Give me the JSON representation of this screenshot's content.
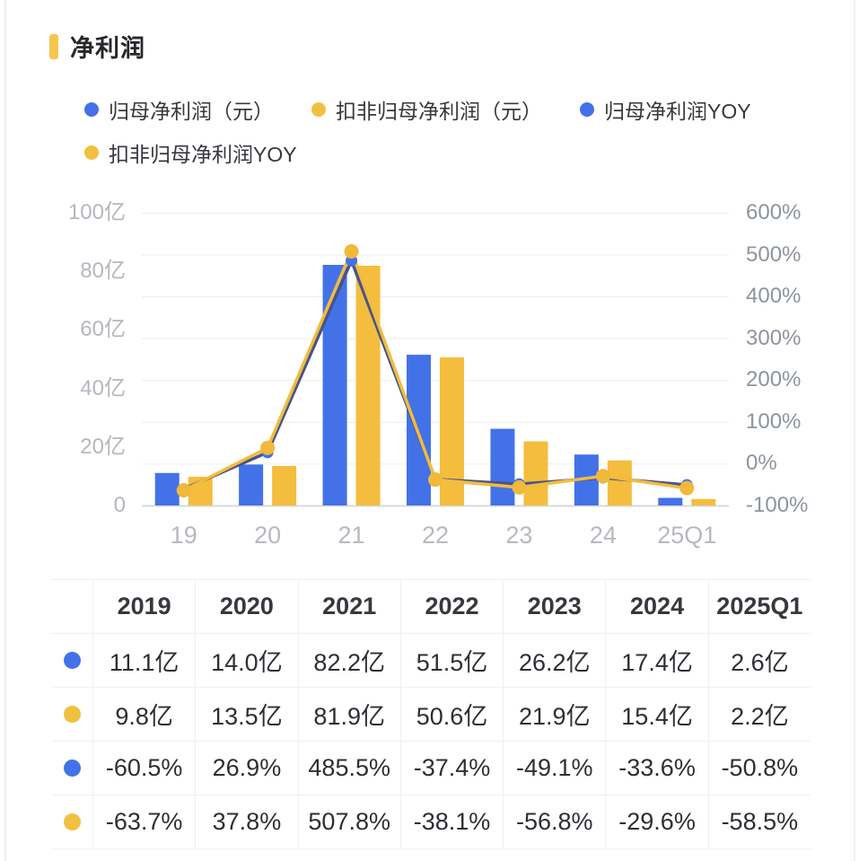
{
  "title": "净利润",
  "accent_color": "#f6c74f",
  "legend": [
    {
      "label": "归母净利润（元）",
      "color": "#4372e8"
    },
    {
      "label": "扣非归母净利润（元）",
      "color": "#f0c040"
    },
    {
      "label": "归母净利润YOY",
      "color": "#4372e8"
    },
    {
      "label": "扣非归母净利润YOY",
      "color": "#f0c040"
    }
  ],
  "chart_data": {
    "type": "bar+line combo",
    "categories": [
      "19",
      "20",
      "21",
      "22",
      "23",
      "24",
      "25Q1"
    ],
    "series": [
      {
        "name": "归母净利润（元）",
        "type": "bar",
        "axis": "left",
        "unit": "亿",
        "color": "#4372e8",
        "values": [
          11.1,
          14.0,
          82.2,
          51.5,
          26.2,
          17.4,
          2.6
        ]
      },
      {
        "name": "扣非归母净利润（元）",
        "type": "bar",
        "axis": "left",
        "unit": "亿",
        "color": "#f4bd3d",
        "values": [
          9.8,
          13.5,
          81.9,
          50.6,
          21.9,
          15.4,
          2.2
        ]
      },
      {
        "name": "归母净利润YOY",
        "type": "line",
        "axis": "right",
        "unit": "%",
        "color": "#47548c",
        "dot_color": "#4372e8",
        "values": [
          -60.5,
          26.9,
          485.5,
          -37.4,
          -49.1,
          -33.6,
          -50.8
        ]
      },
      {
        "name": "扣非归母净利润YOY",
        "type": "line",
        "axis": "right",
        "unit": "%",
        "color": "#f2bc3c",
        "dot_color": "#f0b93a",
        "values": [
          -63.7,
          37.8,
          507.8,
          -38.1,
          -56.8,
          -29.6,
          -58.5
        ]
      }
    ],
    "left_axis": {
      "ticks": [
        "100亿",
        "80亿",
        "60亿",
        "40亿",
        "20亿",
        "0"
      ],
      "min": 0,
      "max": 100,
      "unit": "亿"
    },
    "right_axis": {
      "ticks": [
        "600%",
        "500%",
        "400%",
        "300%",
        "200%",
        "100%",
        "0%",
        "-100%"
      ],
      "min": -100,
      "max": 600,
      "unit": "%"
    },
    "grid": "horizontal",
    "legend_position": "top"
  },
  "table": {
    "header": [
      "2019",
      "2020",
      "2021",
      "2022",
      "2023",
      "2024",
      "2025Q1"
    ],
    "rows": [
      {
        "marker_color": "#4372e8",
        "series": "归母净利润（元）",
        "cells": [
          "11.1亿",
          "14.0亿",
          "82.2亿",
          "51.5亿",
          "26.2亿",
          "17.4亿",
          "2.6亿"
        ]
      },
      {
        "marker_color": "#f0c040",
        "series": "扣非归母净利润（元）",
        "cells": [
          "9.8亿",
          "13.5亿",
          "81.9亿",
          "50.6亿",
          "21.9亿",
          "15.4亿",
          "2.2亿"
        ]
      },
      {
        "marker_color": "#4372e8",
        "series": "归母净利润YOY",
        "cells": [
          "-60.5%",
          "26.9%",
          "485.5%",
          "-37.4%",
          "-49.1%",
          "-33.6%",
          "-50.8%"
        ]
      },
      {
        "marker_color": "#f0c040",
        "series": "扣非归母净利润YOY",
        "cells": [
          "-63.7%",
          "37.8%",
          "507.8%",
          "-38.1%",
          "-56.8%",
          "-29.6%",
          "-58.5%"
        ]
      }
    ]
  },
  "colors": {
    "bar_blue": "#4372e8",
    "bar_yellow": "#f4bd3d",
    "line_blue": "#47548c",
    "line_yellow": "#f2bc3c",
    "gridline": "#ededee",
    "axis_line": "#d6d8db"
  }
}
